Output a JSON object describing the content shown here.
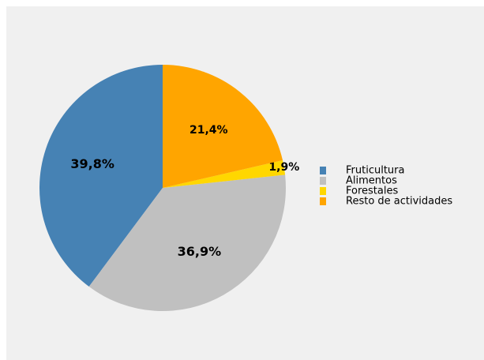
{
  "chart_data": {
    "type": "pie",
    "categories": [
      "Fruticultura",
      "Alimentos",
      "Forestales",
      "Resto de actividades"
    ],
    "values": [
      39.8,
      36.9,
      1.9,
      21.4
    ],
    "value_labels": [
      "39,8%",
      "36,9%",
      "1,9%",
      "21,4%"
    ],
    "colors": [
      "#4682b4",
      "#c0c0c0",
      "#ffd700",
      "#ffa500"
    ],
    "legend": "right"
  }
}
